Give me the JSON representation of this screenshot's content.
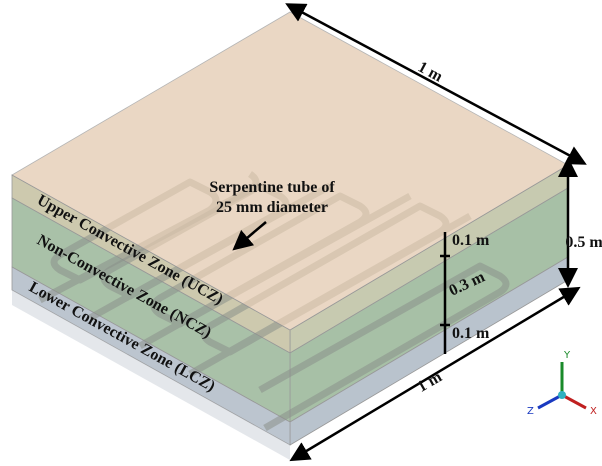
{
  "tube_label": [
    "Serpentine tube of",
    "25 mm diameter"
  ],
  "zones": [
    "Upper Convective Zone (UCZ)",
    "Non-Convective Zone (NCZ)",
    "Lower Convective Zone (LCZ)"
  ],
  "dimensions": {
    "length_top": "1 m",
    "height": "0.5 m",
    "ucz": "0.1 m",
    "ncz": "0.3 m",
    "lcz": "0.1 m",
    "length_bottom": "1 m"
  },
  "axes": {
    "y": "Y",
    "z": "Z",
    "x": "X"
  }
}
